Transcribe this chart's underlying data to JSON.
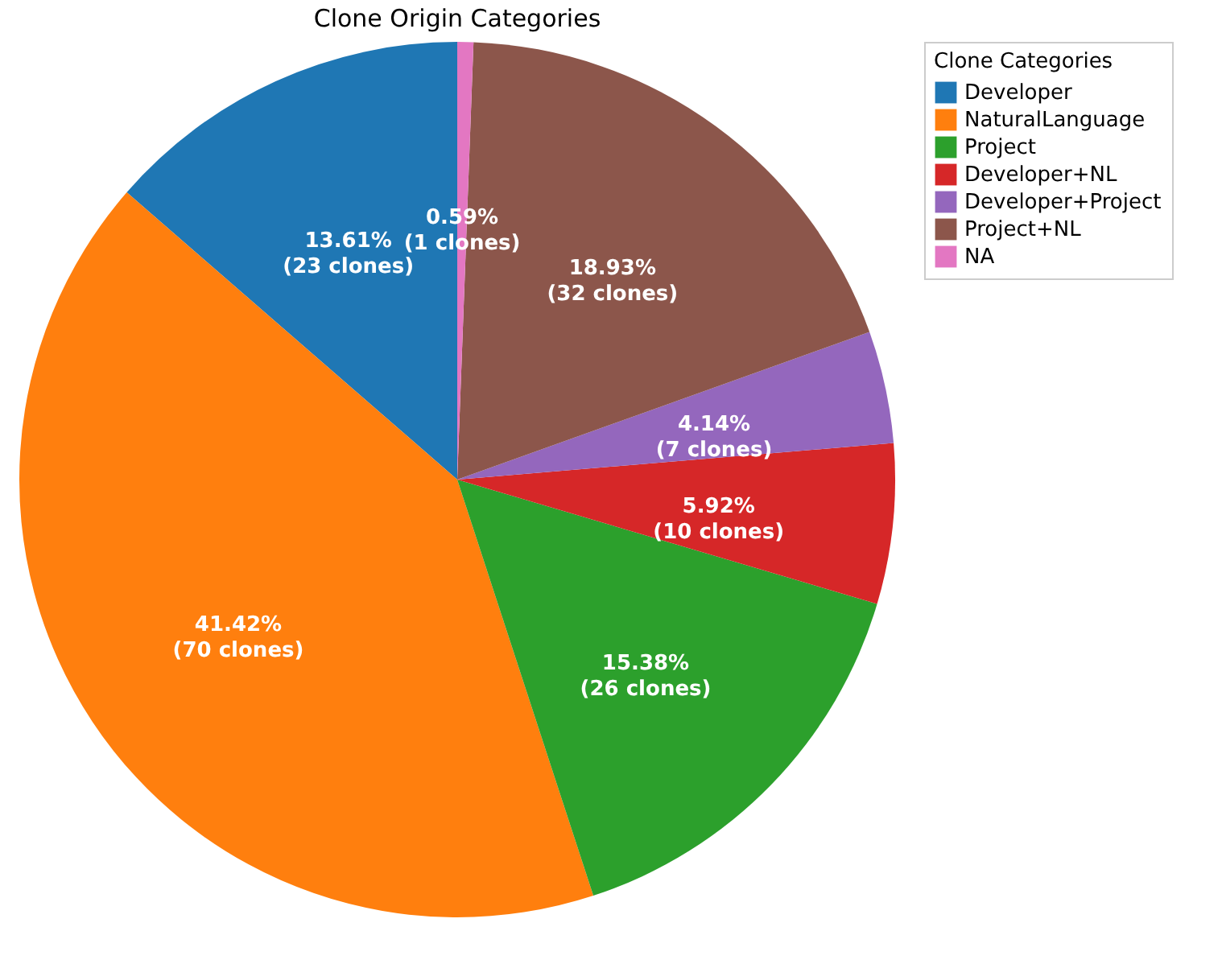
{
  "chart_data": {
    "type": "pie",
    "title": "Clone Origin Categories",
    "legend_title": "Clone Categories",
    "legend": "right",
    "categories": [
      "Developer",
      "NaturalLanguage",
      "Project",
      "Developer+NL",
      "Developer+Project",
      "Project+NL",
      "NA"
    ],
    "values": [
      23,
      70,
      26,
      10,
      7,
      32,
      1
    ],
    "colors": [
      "#1f77b4",
      "#ff7f0e",
      "#2ca02c",
      "#d62728",
      "#9467bd",
      "#8c564b",
      "#e377c2"
    ],
    "value_labels": [
      "13.61%\n(23 clones)",
      "41.42%\n(70 clones)",
      "15.38%\n(26 clones)",
      "5.92%\n(10 clones)",
      "4.14%\n(7 clones)",
      "18.93%\n(32 clones)",
      "0.59%\n(1 clones)"
    ]
  }
}
